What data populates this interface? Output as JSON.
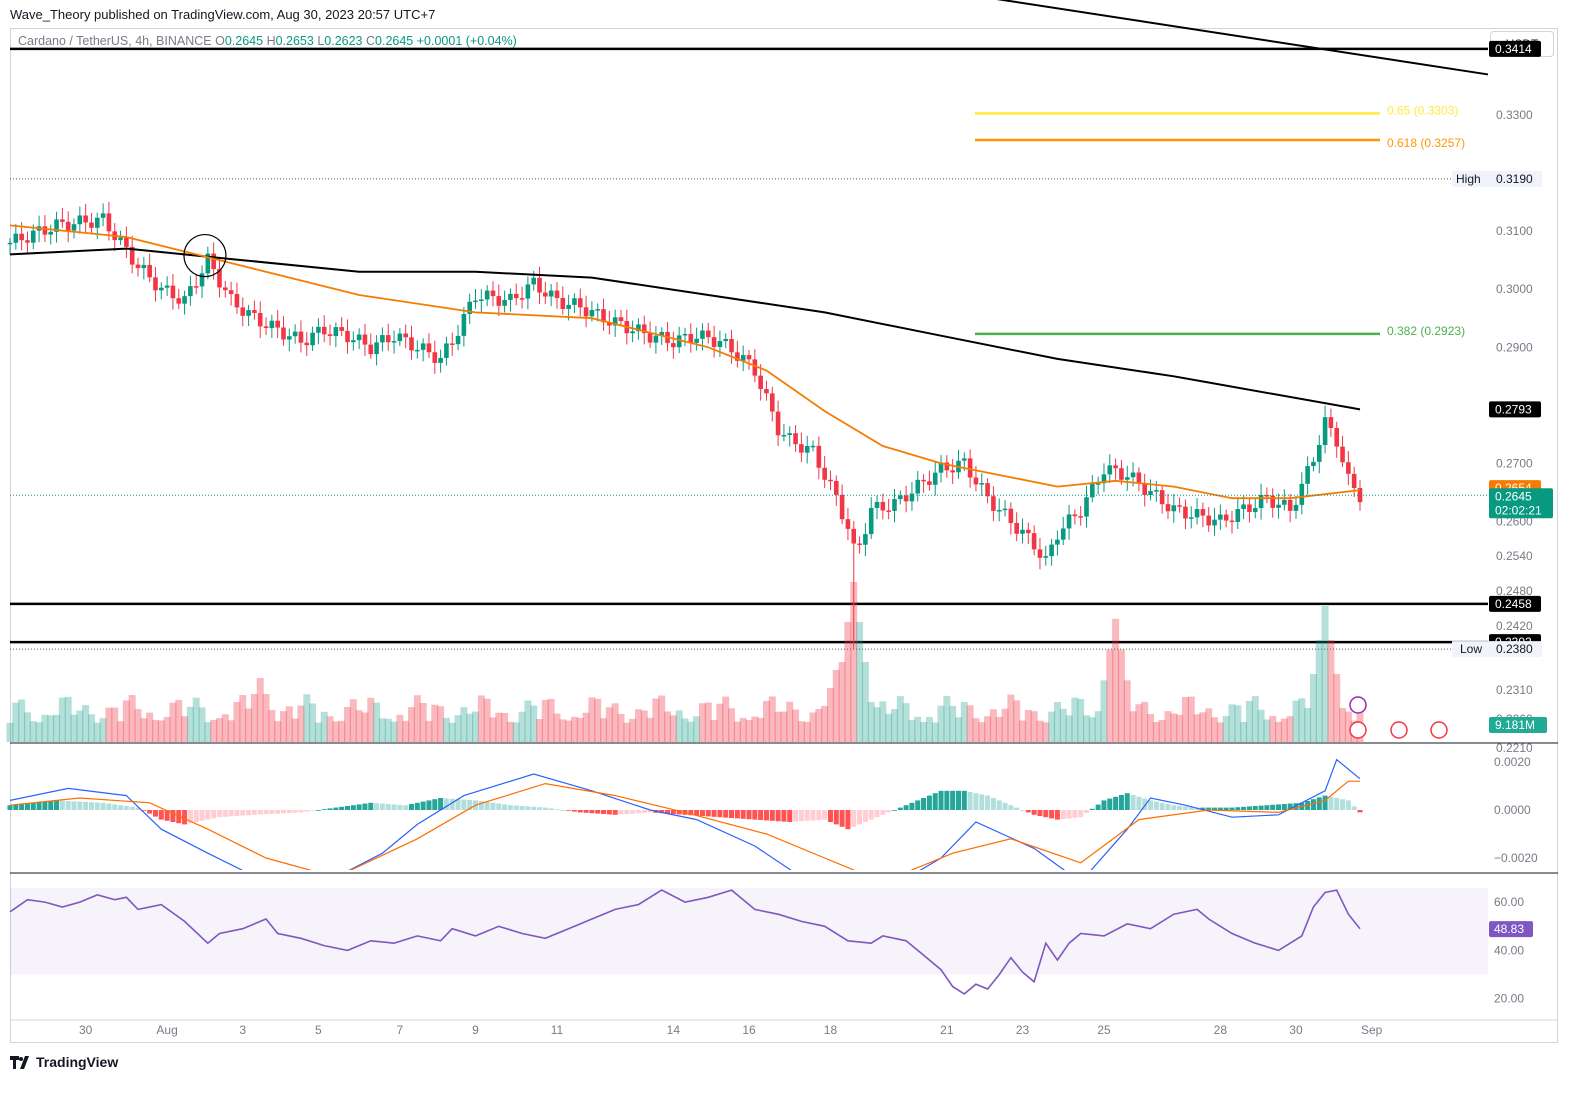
{
  "publisher": "Wave_Theory published on TradingView.com, Aug 30, 2023 20:57 UTC+7",
  "symbol": {
    "name": "Cardano / TetherUS, 4h, BINANCE",
    "open_label": "O",
    "open": "0.2645",
    "high_label": "H",
    "high": "0.2653",
    "low_label": "L",
    "low": "0.2623",
    "close_label": "C",
    "close": "0.2645",
    "change": "+0.0001 (+0.04%)"
  },
  "currency": "USDT",
  "brand": "TradingView",
  "colors": {
    "up": "#089981",
    "down": "#f23645",
    "ema50": "#f57c00",
    "ema200": "#000000",
    "fib_065": "#ffeb3b",
    "fib_0618": "#ff9800",
    "fib_0382": "#4caf50",
    "rsi": "#7e57c2"
  },
  "chart_data": [
    {
      "type": "candlestick",
      "price_axis": [
        "0.3300",
        "0.3190",
        "0.3100",
        "0.3000",
        "0.2900",
        "0.2700",
        "0.2600",
        "0.2540",
        "0.2480",
        "0.2420",
        "0.2310",
        "0.2260",
        "0.2210"
      ],
      "ylim": [
        0.222,
        0.345
      ],
      "x_ticks": [
        "30",
        "Aug",
        "3",
        "5",
        "7",
        "9",
        "11",
        "14",
        "16",
        "18",
        "21",
        "23",
        "25",
        "28",
        "30",
        "Sep"
      ],
      "levels": [
        {
          "value": 0.3414,
          "label": "0.3414"
        },
        {
          "value": 0.2458,
          "label": "0.2458"
        },
        {
          "value": 0.2392,
          "label": "0.2392"
        }
      ],
      "high": {
        "label": "High",
        "value": "0.3190"
      },
      "low": {
        "label": "Low",
        "value": "0.2380"
      },
      "fib_levels": [
        {
          "ratio": "0.65",
          "value": 0.3303,
          "label": "0.65 (0.3303)"
        },
        {
          "ratio": "0.618",
          "value": 0.3257,
          "label": "0.618 (0.3257)"
        },
        {
          "ratio": "0.382",
          "value": 0.2923,
          "label": "0.382 (0.2923)"
        }
      ],
      "ema200_last": "0.2793",
      "ema50_last": "0.2654",
      "last_price": "0.2645",
      "countdown": "02:02:21",
      "volume_last": "9.181M",
      "close_path": [
        [
          0,
          0.308
        ],
        [
          8,
          0.311
        ],
        [
          16,
          0.312
        ],
        [
          22,
          0.304
        ],
        [
          26,
          0.3
        ],
        [
          30,
          0.298
        ],
        [
          34,
          0.305
        ],
        [
          38,
          0.298
        ],
        [
          42,
          0.295
        ],
        [
          46,
          0.293
        ],
        [
          50,
          0.291
        ],
        [
          54,
          0.293
        ],
        [
          58,
          0.292
        ],
        [
          62,
          0.29
        ],
        [
          66,
          0.292
        ],
        [
          70,
          0.29
        ],
        [
          74,
          0.288
        ],
        [
          76,
          0.291
        ],
        [
          80,
          0.299
        ],
        [
          86,
          0.298
        ],
        [
          90,
          0.301
        ],
        [
          94,
          0.298
        ],
        [
          98,
          0.297
        ],
        [
          102,
          0.295
        ],
        [
          106,
          0.2935
        ],
        [
          110,
          0.292
        ],
        [
          114,
          0.291
        ],
        [
          118,
          0.292
        ],
        [
          122,
          0.291
        ],
        [
          126,
          0.288
        ],
        [
          128,
          0.286
        ],
        [
          130,
          0.281
        ],
        [
          132,
          0.276
        ],
        [
          134,
          0.274
        ],
        [
          136,
          0.273
        ],
        [
          138,
          0.272
        ],
        [
          140,
          0.268
        ],
        [
          142,
          0.264
        ],
        [
          144,
          0.259
        ],
        [
          145,
          0.255
        ],
        [
          146,
          0.256
        ],
        [
          148,
          0.262
        ],
        [
          152,
          0.263
        ],
        [
          156,
          0.266
        ],
        [
          160,
          0.269
        ],
        [
          164,
          0.27
        ],
        [
          168,
          0.264
        ],
        [
          172,
          0.26
        ],
        [
          176,
          0.256
        ],
        [
          178,
          0.253
        ],
        [
          180,
          0.258
        ],
        [
          184,
          0.262
        ],
        [
          188,
          0.269
        ],
        [
          192,
          0.268
        ],
        [
          196,
          0.265
        ],
        [
          200,
          0.262
        ],
        [
          204,
          0.261
        ],
        [
          208,
          0.26
        ],
        [
          212,
          0.262
        ],
        [
          216,
          0.264
        ],
        [
          220,
          0.262
        ],
        [
          222,
          0.266
        ],
        [
          224,
          0.271
        ],
        [
          226,
          0.277
        ],
        [
          228,
          0.274
        ],
        [
          230,
          0.267
        ],
        [
          232,
          0.2645
        ]
      ],
      "ema50_path": [
        [
          0,
          0.311
        ],
        [
          20,
          0.309
        ],
        [
          40,
          0.304
        ],
        [
          60,
          0.299
        ],
        [
          80,
          0.296
        ],
        [
          100,
          0.295
        ],
        [
          120,
          0.29
        ],
        [
          130,
          0.286
        ],
        [
          140,
          0.279
        ],
        [
          150,
          0.273
        ],
        [
          160,
          0.27
        ],
        [
          170,
          0.268
        ],
        [
          180,
          0.266
        ],
        [
          190,
          0.267
        ],
        [
          200,
          0.266
        ],
        [
          210,
          0.264
        ],
        [
          220,
          0.264
        ],
        [
          232,
          0.2654
        ]
      ],
      "ema200_path": [
        [
          0,
          0.306
        ],
        [
          20,
          0.307
        ],
        [
          40,
          0.305
        ],
        [
          60,
          0.303
        ],
        [
          80,
          0.303
        ],
        [
          100,
          0.302
        ],
        [
          120,
          0.299
        ],
        [
          140,
          0.296
        ],
        [
          160,
          0.292
        ],
        [
          180,
          0.288
        ],
        [
          200,
          0.285
        ],
        [
          232,
          0.2793
        ]
      ],
      "trendline": {
        "from": [
          124,
          0.357
        ],
        "to": [
          255,
          0.337
        ]
      }
    },
    {
      "type": "bar",
      "name": "Volume",
      "values_note": "",
      "spikes": [
        [
          145,
          1.0
        ],
        [
          142,
          0.45
        ],
        [
          226,
          0.85
        ],
        [
          190,
          0.77
        ],
        [
          43,
          0.4
        ]
      ]
    },
    {
      "type": "line",
      "name": "MACD",
      "axis": [
        "0.0020",
        "0.0000",
        "−0.0020"
      ],
      "ylim": [
        -0.0025,
        0.0025
      ],
      "macd": [
        [
          0,
          0.0004
        ],
        [
          10,
          0.0009
        ],
        [
          20,
          0.0006
        ],
        [
          26,
          -0.0008
        ],
        [
          34,
          -0.0018
        ],
        [
          44,
          -0.003
        ],
        [
          56,
          -0.0028
        ],
        [
          64,
          -0.0018
        ],
        [
          70,
          -0.0006
        ],
        [
          78,
          0.0006
        ],
        [
          90,
          0.0015
        ],
        [
          100,
          0.0008
        ],
        [
          110,
          0.0
        ],
        [
          118,
          -0.0004
        ],
        [
          128,
          -0.0015
        ],
        [
          136,
          -0.0028
        ],
        [
          146,
          -0.004
        ],
        [
          160,
          -0.002
        ],
        [
          166,
          -0.0005
        ],
        [
          176,
          -0.0016
        ],
        [
          184,
          -0.003
        ],
        [
          192,
          -0.0008
        ],
        [
          196,
          0.0005
        ],
        [
          202,
          0.0002
        ],
        [
          210,
          -0.0003
        ],
        [
          218,
          -0.0002
        ],
        [
          226,
          0.0008
        ],
        [
          228,
          0.0021
        ],
        [
          232,
          0.0013
        ]
      ],
      "signal": [
        [
          0,
          0.0002
        ],
        [
          12,
          0.0005
        ],
        [
          24,
          0.0003
        ],
        [
          34,
          -0.0008
        ],
        [
          44,
          -0.002
        ],
        [
          56,
          -0.0028
        ],
        [
          70,
          -0.0012
        ],
        [
          80,
          0.0002
        ],
        [
          92,
          0.0011
        ],
        [
          104,
          0.0006
        ],
        [
          116,
          -0.0001
        ],
        [
          130,
          -0.001
        ],
        [
          140,
          -0.002
        ],
        [
          150,
          -0.003
        ],
        [
          162,
          -0.0018
        ],
        [
          172,
          -0.0012
        ],
        [
          184,
          -0.0022
        ],
        [
          194,
          -0.0004
        ],
        [
          206,
          0.0
        ],
        [
          218,
          -0.0001
        ],
        [
          226,
          0.0004
        ],
        [
          230,
          0.0012
        ],
        [
          232,
          0.0012
        ]
      ],
      "histogram": [
        [
          0,
          0.0002
        ],
        [
          8,
          0.0004
        ],
        [
          16,
          0.0003
        ],
        [
          22,
          0.0001
        ],
        [
          26,
          -0.0004
        ],
        [
          30,
          -0.0006
        ],
        [
          36,
          -0.0003
        ],
        [
          42,
          -0.0002
        ],
        [
          50,
          -0.0001
        ],
        [
          56,
          0.0001
        ],
        [
          62,
          0.0003
        ],
        [
          68,
          0.0002
        ],
        [
          74,
          0.0005
        ],
        [
          80,
          0.0004
        ],
        [
          86,
          0.0002
        ],
        [
          92,
          0.0001
        ],
        [
          98,
          -0.0001
        ],
        [
          104,
          -0.0002
        ],
        [
          110,
          -0.0001
        ],
        [
          116,
          -0.0002
        ],
        [
          122,
          -0.0003
        ],
        [
          128,
          -0.0004
        ],
        [
          134,
          -0.0005
        ],
        [
          140,
          -0.0004
        ],
        [
          144,
          -0.0008
        ],
        [
          148,
          -0.0004
        ],
        [
          154,
          0.0002
        ],
        [
          160,
          0.0008
        ],
        [
          164,
          0.0008
        ],
        [
          168,
          0.0006
        ],
        [
          172,
          0.0002
        ],
        [
          176,
          -0.0002
        ],
        [
          180,
          -0.0004
        ],
        [
          184,
          -0.0003
        ],
        [
          188,
          0.0004
        ],
        [
          192,
          0.0007
        ],
        [
          196,
          0.0004
        ],
        [
          200,
          0.0002
        ],
        [
          204,
          0.0001
        ],
        [
          210,
          0.0001
        ],
        [
          216,
          0.0002
        ],
        [
          222,
          0.0003
        ],
        [
          226,
          0.0006
        ],
        [
          230,
          0.0004
        ],
        [
          232,
          -0.0001
        ]
      ]
    },
    {
      "type": "line",
      "name": "RSI",
      "axis": [
        "60.00",
        "40.00",
        "20.00"
      ],
      "ylim": [
        12,
        70
      ],
      "last": "48.83",
      "values": [
        [
          0,
          56
        ],
        [
          3,
          61
        ],
        [
          6,
          60
        ],
        [
          9,
          58
        ],
        [
          12,
          60
        ],
        [
          15,
          63
        ],
        [
          18,
          61
        ],
        [
          20,
          62
        ],
        [
          22,
          57
        ],
        [
          26,
          59
        ],
        [
          30,
          52
        ],
        [
          34,
          43
        ],
        [
          36,
          47
        ],
        [
          40,
          49
        ],
        [
          44,
          53
        ],
        [
          46,
          47
        ],
        [
          50,
          45
        ],
        [
          54,
          42
        ],
        [
          58,
          40
        ],
        [
          62,
          44
        ],
        [
          66,
          43
        ],
        [
          70,
          46
        ],
        [
          74,
          44
        ],
        [
          76,
          49
        ],
        [
          80,
          46
        ],
        [
          84,
          50
        ],
        [
          88,
          47
        ],
        [
          92,
          45
        ],
        [
          96,
          49
        ],
        [
          100,
          53
        ],
        [
          104,
          57
        ],
        [
          108,
          59
        ],
        [
          112,
          65
        ],
        [
          116,
          60
        ],
        [
          120,
          62
        ],
        [
          124,
          65
        ],
        [
          128,
          57
        ],
        [
          132,
          55
        ],
        [
          136,
          52
        ],
        [
          140,
          50
        ],
        [
          144,
          44
        ],
        [
          148,
          43
        ],
        [
          150,
          46
        ],
        [
          154,
          44
        ],
        [
          156,
          40
        ],
        [
          160,
          32
        ],
        [
          162,
          25
        ],
        [
          164,
          22
        ],
        [
          166,
          26
        ],
        [
          168,
          24
        ],
        [
          170,
          30
        ],
        [
          172,
          37
        ],
        [
          174,
          31
        ],
        [
          176,
          27
        ],
        [
          178,
          43
        ],
        [
          180,
          36
        ],
        [
          182,
          43
        ],
        [
          184,
          47
        ],
        [
          188,
          46
        ],
        [
          192,
          51
        ],
        [
          196,
          49
        ],
        [
          200,
          55
        ],
        [
          204,
          57
        ],
        [
          206,
          53
        ],
        [
          210,
          47
        ],
        [
          214,
          43
        ],
        [
          218,
          40
        ],
        [
          222,
          46
        ],
        [
          224,
          58
        ],
        [
          226,
          64
        ],
        [
          228,
          65
        ],
        [
          230,
          55
        ],
        [
          232,
          49
        ]
      ]
    }
  ]
}
